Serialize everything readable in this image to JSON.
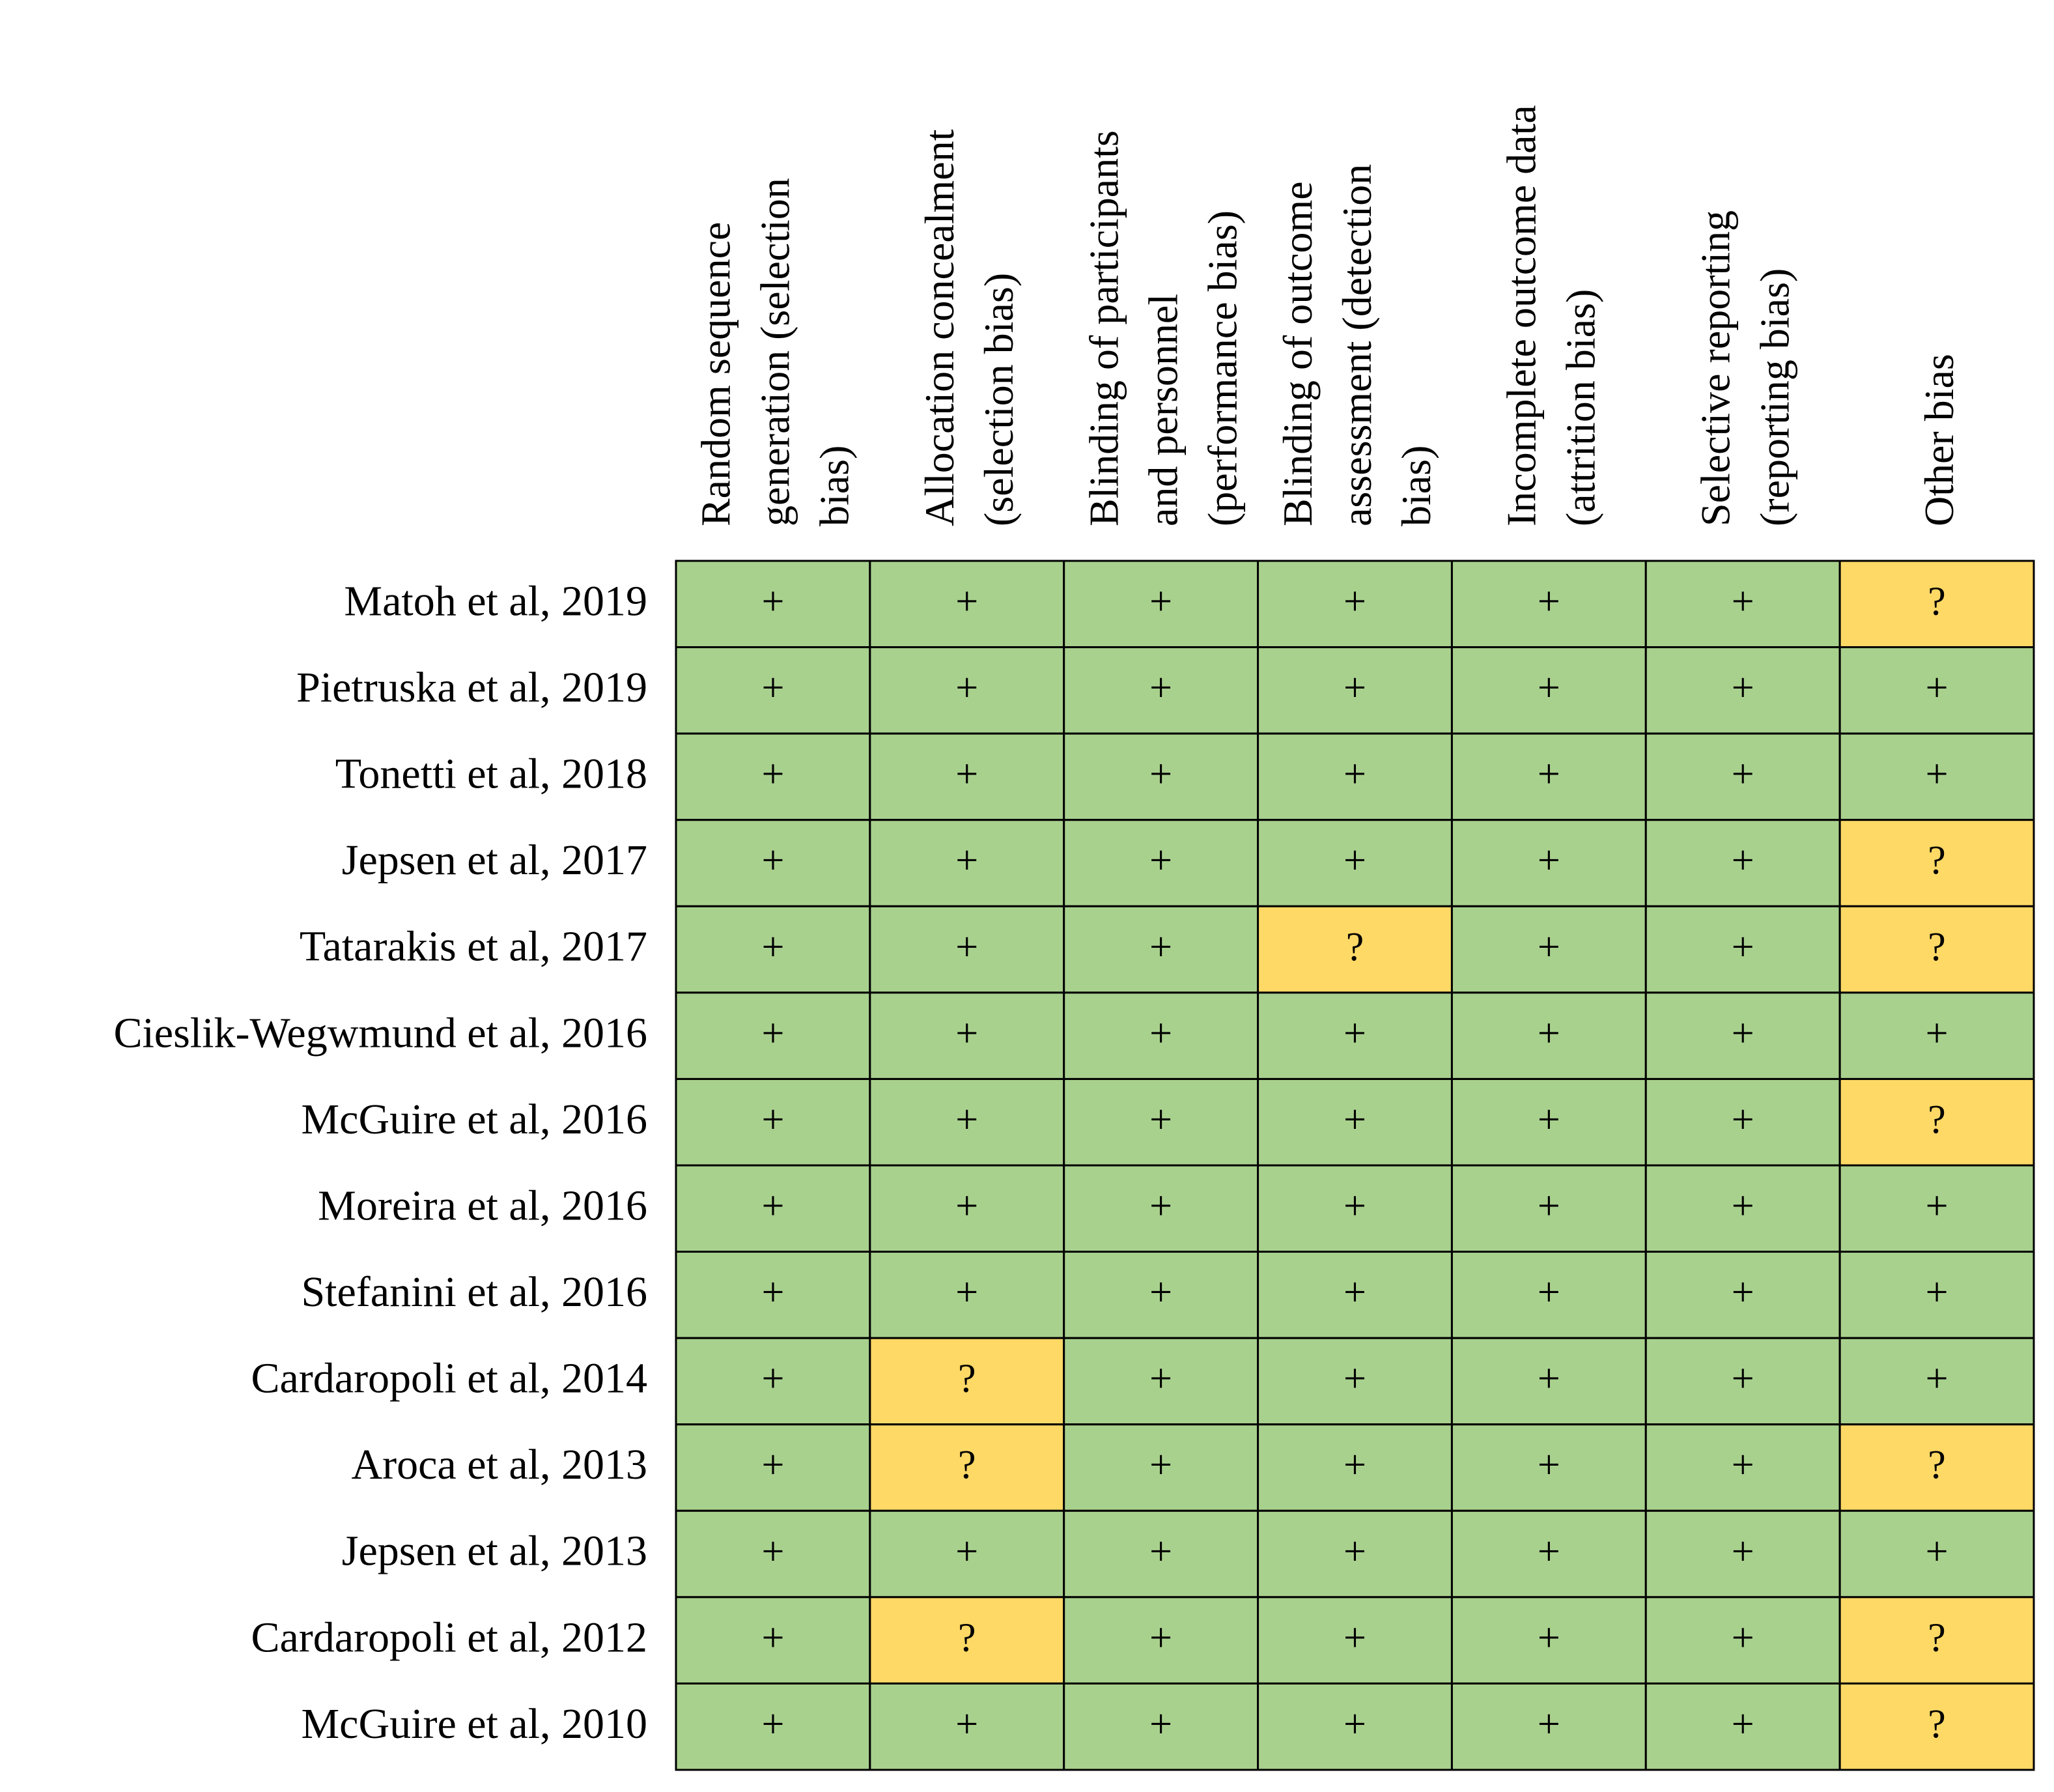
{
  "table": {
    "columns": [
      [
        "Random sequence",
        "generation (selection",
        "bias)"
      ],
      [
        "Allocation concealment",
        "(selection bias)"
      ],
      [
        "Blinding of participants",
        "and personnel",
        "(performance bias)"
      ],
      [
        "Blinding of outcome",
        "assessment (detection",
        "bias)"
      ],
      [
        "Incomplete outcome data",
        "(attrition bias)"
      ],
      [
        "Selective reporting",
        "(reporting bias)"
      ],
      [
        "Other bias"
      ]
    ],
    "cell_colors": {
      "+": "#a9d18e",
      "?": "#ffd966"
    },
    "rows": [
      {
        "study": "Matoh et al, 2019",
        "cells": [
          "+",
          "+",
          "+",
          "+",
          "+",
          "+",
          "?"
        ]
      },
      {
        "study": "Pietruska et al, 2019",
        "cells": [
          "+",
          "+",
          "+",
          "+",
          "+",
          "+",
          "+"
        ]
      },
      {
        "study": "Tonetti et al, 2018",
        "cells": [
          "+",
          "+",
          "+",
          "+",
          "+",
          "+",
          "+"
        ]
      },
      {
        "study": "Jepsen et al, 2017",
        "cells": [
          "+",
          "+",
          "+",
          "+",
          "+",
          "+",
          "?"
        ]
      },
      {
        "study": "Tatarakis et al, 2017",
        "cells": [
          "+",
          "+",
          "+",
          "?",
          "+",
          "+",
          "?"
        ]
      },
      {
        "study": "Cieslik-Wegwmund et al, 2016",
        "cells": [
          "+",
          "+",
          "+",
          "+",
          "+",
          "+",
          "+"
        ]
      },
      {
        "study": "McGuire et al, 2016",
        "cells": [
          "+",
          "+",
          "+",
          "+",
          "+",
          "+",
          "?"
        ]
      },
      {
        "study": "Moreira et al, 2016",
        "cells": [
          "+",
          "+",
          "+",
          "+",
          "+",
          "+",
          "+"
        ]
      },
      {
        "study": "Stefanini et al, 2016",
        "cells": [
          "+",
          "+",
          "+",
          "+",
          "+",
          "+",
          "+"
        ]
      },
      {
        "study": "Cardaropoli et al, 2014",
        "cells": [
          "+",
          "?",
          "+",
          "+",
          "+",
          "+",
          "+"
        ]
      },
      {
        "study": "Aroca et al, 2013",
        "cells": [
          "+",
          "?",
          "+",
          "+",
          "+",
          "+",
          "?"
        ]
      },
      {
        "study": "Jepsen et al, 2013",
        "cells": [
          "+",
          "+",
          "+",
          "+",
          "+",
          "+",
          "+"
        ]
      },
      {
        "study": "Cardaropoli et al, 2012",
        "cells": [
          "+",
          "?",
          "+",
          "+",
          "+",
          "+",
          "?"
        ]
      },
      {
        "study": "McGuire et al, 2010",
        "cells": [
          "+",
          "+",
          "+",
          "+",
          "+",
          "+",
          "?"
        ]
      }
    ]
  }
}
